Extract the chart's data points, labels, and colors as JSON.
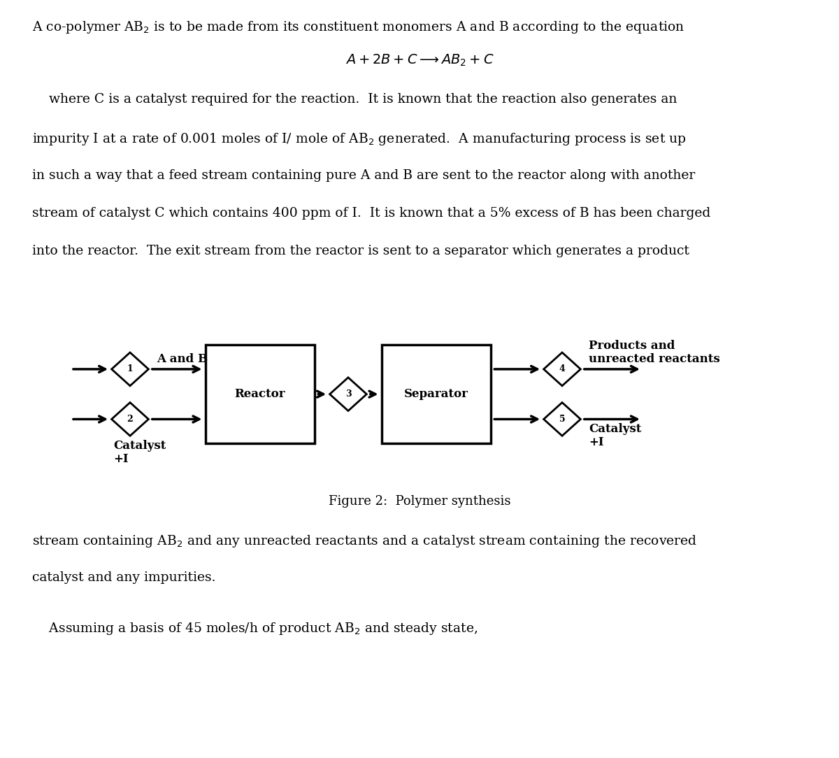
{
  "bg_color": "#ffffff",
  "page_width": 12.0,
  "page_height": 10.84,
  "top_text": "A co-polymer AB$_2$ is to be made from its constituent monomers A and B according to the equation",
  "equation": "$A + 2B + C \\longrightarrow AB_2 + C$",
  "body_line1": "    where C is a catalyst required for the reaction.  It is known that the reaction also generates an",
  "body_line2": "impurity I at a rate of 0.001 moles of I/ mole of AB$_2$ generated.  A manufacturing process is set up",
  "body_line3": "in such a way that a feed stream containing pure A and B are sent to the reactor along with another",
  "body_line4": "stream of catalyst C which contains 400 ppm of I.  It is known that a 5% excess of B has been charged",
  "body_line5": "into the reactor.  The exit stream from the reactor is sent to a separator which generates a product",
  "bottom_line1": "stream containing AB$_2$ and any unreacted reactants and a catalyst stream containing the recovered",
  "bottom_line2": "catalyst and any impurities.",
  "bottom_line3": "    Assuming a basis of 45 moles/h of product AB$_2$ and steady state,",
  "figure_caption": "Figure 2:  Polymer synthesis",
  "stream1_label": "A and B",
  "stream2_label": "Catalyst\n+I",
  "stream4_label": "Products and\nunreacted reactants",
  "stream5_label": "Catalyst\n+I",
  "text_fontsize": 13.5,
  "eq_fontsize": 14,
  "body_fontsize": 13.5,
  "caption_fontsize": 13,
  "label_fontsize": 12,
  "stream_label_fontsize": 12
}
